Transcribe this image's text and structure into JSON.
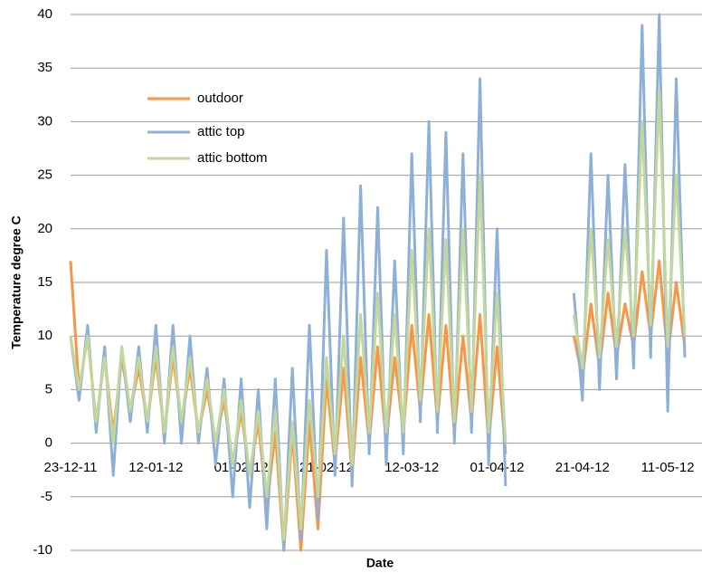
{
  "chart_data": {
    "type": "line",
    "y_label": "Temperature degree C",
    "x_label": "Date",
    "x": [
      "23-12-11",
      "25-12-11",
      "27-12-11",
      "29-12-11",
      "31-12-11",
      "02-01-12",
      "04-01-12",
      "06-01-12",
      "08-01-12",
      "10-01-12",
      "12-01-12",
      "14-01-12",
      "16-01-12",
      "18-01-12",
      "20-01-12",
      "22-01-12",
      "24-01-12",
      "26-01-12",
      "28-01-12",
      "30-01-12",
      "01-02-12",
      "03-02-12",
      "05-02-12",
      "07-02-12",
      "09-02-12",
      "11-02-12",
      "13-02-12",
      "15-02-12",
      "17-02-12",
      "19-02-12",
      "21-02-12",
      "23-02-12",
      "25-02-12",
      "27-02-12",
      "29-02-12",
      "02-03-12",
      "04-03-12",
      "06-03-12",
      "08-03-12",
      "10-03-12",
      "12-03-12",
      "14-03-12",
      "16-03-12",
      "18-03-12",
      "20-03-12",
      "22-03-12",
      "24-03-12",
      "26-03-12",
      "28-03-12",
      "30-03-12",
      "01-04-12",
      "03-04-12",
      "05-04-12",
      "07-04-12",
      "09-04-12",
      "11-04-12",
      "13-04-12",
      "15-04-12",
      "17-04-12",
      "19-04-12",
      "21-04-12",
      "23-04-12",
      "25-04-12",
      "27-04-12",
      "29-04-12",
      "01-05-12",
      "03-05-12",
      "05-05-12",
      "07-05-12",
      "09-05-12",
      "11-05-12",
      "13-05-12",
      "15-05-12"
    ],
    "xticks": [
      "23-12-11",
      "12-01-12",
      "01-02-12",
      "21-02-12",
      "12-03-12",
      "01-04-12",
      "21-04-12",
      "11-05-12"
    ],
    "series": [
      {
        "name": "outdoor",
        "color": "#f79646",
        "values": [
          17,
          5,
          10,
          2,
          8,
          1,
          8,
          3,
          7,
          2,
          8,
          1,
          8,
          2,
          7,
          1,
          5,
          0,
          4,
          -2,
          3,
          -3,
          2,
          -6,
          1,
          -10,
          1,
          -10,
          2,
          -8,
          6,
          -2,
          7,
          -3,
          8,
          0,
          9,
          0,
          8,
          1,
          11,
          3,
          12,
          2,
          11,
          1,
          10,
          2,
          12,
          0,
          9,
          -1,
          null,
          null,
          null,
          null,
          null,
          null,
          null,
          10,
          6,
          13,
          7,
          14,
          8,
          13,
          9,
          16,
          10,
          17,
          8,
          15,
          9
        ]
      },
      {
        "name": "attic top",
        "color": "#8eb0d8",
        "values": [
          10,
          4,
          11,
          1,
          9,
          -3,
          9,
          2,
          9,
          1,
          11,
          0,
          11,
          0,
          10,
          0,
          7,
          -2,
          6,
          -5,
          6,
          -6,
          5,
          -8,
          6,
          -10,
          7,
          -9,
          11,
          -7,
          18,
          -3,
          21,
          -4,
          24,
          -1,
          22,
          -2,
          17,
          -1,
          27,
          2,
          30,
          1,
          29,
          0,
          27,
          1,
          34,
          -2,
          20,
          -4,
          null,
          null,
          null,
          null,
          null,
          null,
          null,
          14,
          4,
          27,
          5,
          25,
          6,
          26,
          7,
          39,
          8,
          40,
          3,
          34,
          8
        ]
      },
      {
        "name": "attic bottom",
        "color": "#c3d69b",
        "values": [
          10,
          5,
          10,
          2,
          8,
          0,
          9,
          3,
          8,
          2,
          9,
          1,
          9,
          2,
          8,
          1,
          6,
          0,
          5,
          -2,
          4,
          -3,
          3,
          -5,
          3,
          -9,
          2,
          -8,
          4,
          -5,
          8,
          -1,
          10,
          -2,
          12,
          1,
          14,
          1,
          12,
          1,
          18,
          4,
          20,
          3,
          19,
          2,
          20,
          3,
          25,
          1,
          14,
          0,
          null,
          null,
          null,
          null,
          null,
          null,
          null,
          12,
          7,
          20,
          8,
          19,
          9,
          20,
          10,
          30,
          11,
          33,
          9,
          25,
          10
        ]
      }
    ],
    "ylim": [
      -10,
      40
    ],
    "yticks": [
      -10,
      -5,
      0,
      5,
      10,
      15,
      20,
      25,
      30,
      35,
      40
    ],
    "grid": true
  }
}
